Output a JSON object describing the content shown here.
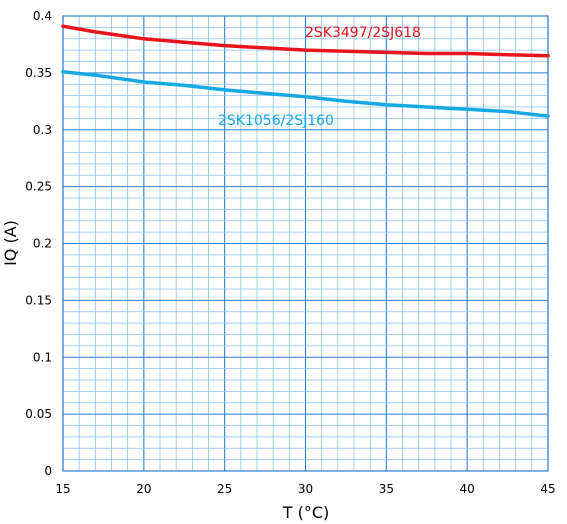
{
  "chart_data": {
    "type": "line",
    "title": "",
    "xlabel": "T (°C)",
    "ylabel": "IQ (A)",
    "xlim": [
      15,
      45
    ],
    "ylim": [
      0,
      0.4
    ],
    "grid": true,
    "x_ticks": [
      15,
      20,
      25,
      30,
      35,
      40,
      45
    ],
    "x_tick_labels": [
      "15",
      "20",
      "25",
      "30",
      "35",
      "40",
      "45"
    ],
    "y_ticks": [
      0,
      0.05,
      0.1,
      0.15,
      0.2,
      0.25,
      0.3,
      0.35,
      0.4
    ],
    "y_tick_labels": [
      "0",
      "0.05",
      "0.1",
      "0.15",
      "0.2",
      "0.25",
      "0.3",
      "0.35",
      "0.4"
    ],
    "series": [
      {
        "name": "2SK3497/2SJ618",
        "color": "#e8141c",
        "x": [
          15,
          17,
          20,
          22.5,
          25,
          27.5,
          30,
          32.5,
          35,
          37.5,
          40,
          42.5,
          45
        ],
        "y": [
          0.391,
          0.386,
          0.38,
          0.377,
          0.374,
          0.372,
          0.37,
          0.369,
          0.368,
          0.367,
          0.367,
          0.366,
          0.365
        ]
      },
      {
        "name": "2SK1056/2SJ160",
        "color": "#16a8e2",
        "x": [
          15,
          17,
          20,
          22.5,
          25,
          27.5,
          30,
          32.5,
          35,
          37.5,
          40,
          42.5,
          45
        ],
        "y": [
          0.351,
          0.348,
          0.342,
          0.339,
          0.335,
          0.332,
          0.329,
          0.325,
          0.322,
          0.32,
          0.318,
          0.316,
          0.312
        ]
      }
    ]
  }
}
